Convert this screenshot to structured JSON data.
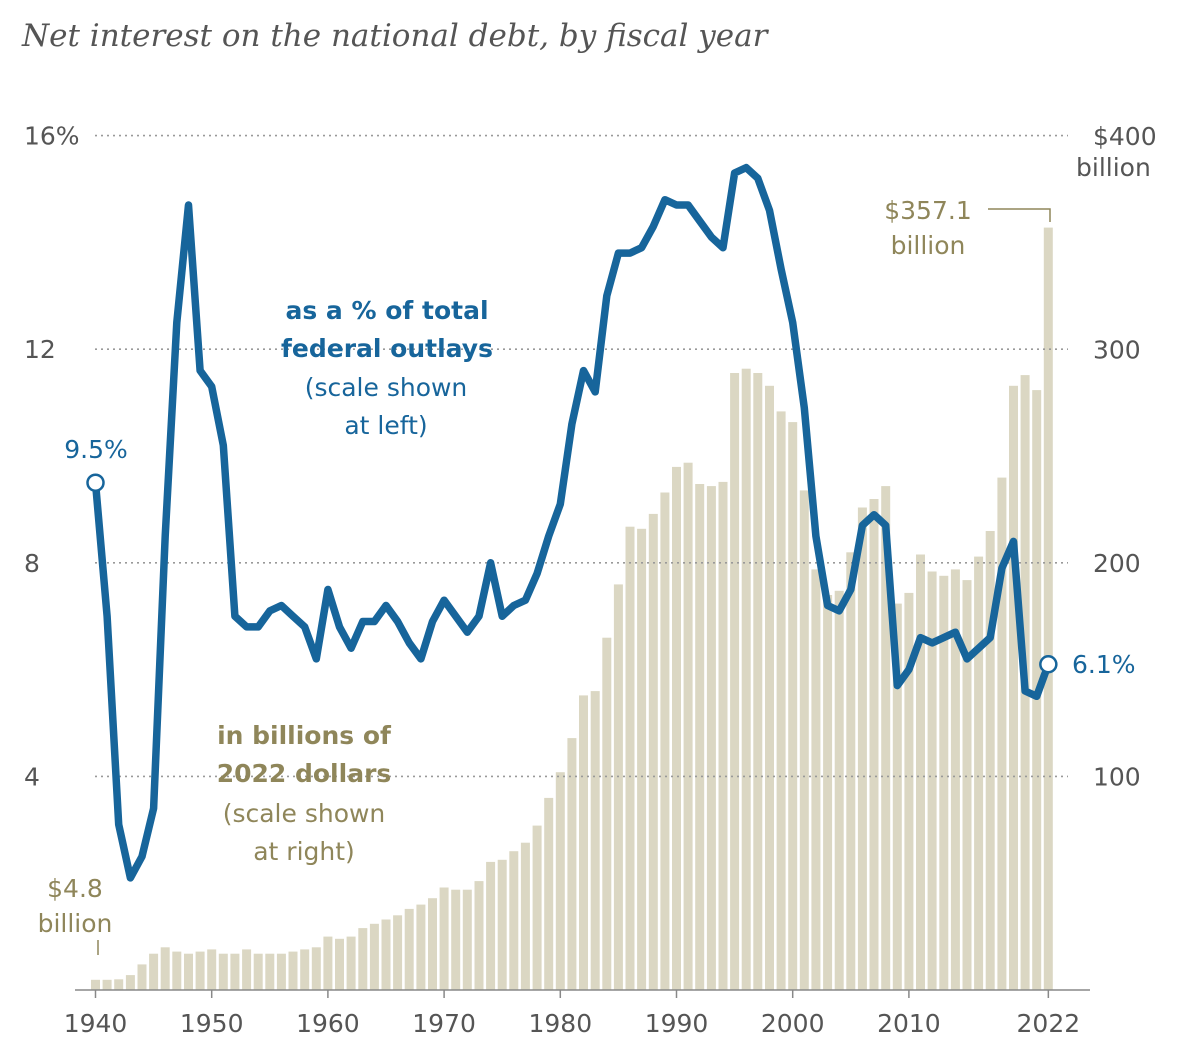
{
  "title": "Net interest on the national debt, by fiscal year",
  "colors": {
    "line": "#17659b",
    "bars": "#dbd7c3",
    "bar_annotation": "#8f865a",
    "grid": "#999999",
    "axis_text": "#555555"
  },
  "chart_data": {
    "type": "bar+line",
    "title": "Net interest on the national debt, by fiscal year",
    "x": [
      1940,
      1941,
      1942,
      1943,
      1944,
      1945,
      1946,
      1947,
      1948,
      1949,
      1950,
      1951,
      1952,
      1953,
      1954,
      1955,
      1956,
      1957,
      1958,
      1959,
      1960,
      1961,
      1962,
      1963,
      1964,
      1965,
      1966,
      1967,
      1968,
      1969,
      1970,
      1971,
      1972,
      1973,
      1974,
      1975,
      1976,
      1977,
      1978,
      1979,
      1980,
      1981,
      1982,
      1983,
      1984,
      1985,
      1986,
      1987,
      1988,
      1989,
      1990,
      1991,
      1992,
      1993,
      1994,
      1995,
      1996,
      1997,
      1998,
      1999,
      2000,
      2001,
      2002,
      2003,
      2004,
      2005,
      2006,
      2007,
      2008,
      2009,
      2010,
      2011,
      2012,
      2013,
      2014,
      2015,
      2016,
      2017,
      2018,
      2019,
      2020,
      2021,
      2022
    ],
    "x_ticks": [
      "1940",
      "1950",
      "1960",
      "1970",
      "1980",
      "1990",
      "2000",
      "2010",
      "2022"
    ],
    "series": [
      {
        "name": "as a % of total federal outlays",
        "axis": "left",
        "kind": "line",
        "values": [
          9.5,
          7.0,
          3.1,
          2.1,
          2.5,
          3.4,
          8.5,
          12.5,
          14.7,
          11.6,
          11.3,
          10.2,
          7.0,
          6.8,
          6.8,
          7.1,
          7.2,
          7.0,
          6.8,
          6.2,
          7.5,
          6.8,
          6.4,
          6.9,
          6.9,
          7.2,
          6.9,
          6.5,
          6.2,
          6.9,
          7.3,
          7.0,
          6.7,
          7.0,
          8.0,
          7.0,
          7.2,
          7.3,
          7.8,
          8.5,
          9.1,
          10.6,
          11.6,
          11.2,
          13.0,
          13.8,
          13.8,
          13.9,
          14.3,
          14.8,
          14.7,
          14.7,
          14.4,
          14.1,
          13.9,
          15.3,
          15.4,
          15.2,
          14.6,
          13.5,
          12.5,
          10.9,
          8.5,
          7.2,
          7.1,
          7.5,
          8.7,
          8.9,
          8.7,
          5.7,
          6.0,
          6.6,
          6.5,
          6.6,
          6.7,
          6.2,
          6.4,
          6.6,
          7.9,
          8.4,
          5.6,
          5.5,
          6.1
        ]
      },
      {
        "name": "in billions of 2022 dollars",
        "axis": "right",
        "kind": "bar",
        "values": [
          4.8,
          4.8,
          5.0,
          7.0,
          12.0,
          17.0,
          20.0,
          18.0,
          17.0,
          18.0,
          19.0,
          17.0,
          17.0,
          19.0,
          17.0,
          17.0,
          17.0,
          18.0,
          19.0,
          20.0,
          25.0,
          24.0,
          25.0,
          29.0,
          31.0,
          33.0,
          35.0,
          38.0,
          40.0,
          43.0,
          48.0,
          47.0,
          47.0,
          51.0,
          60.0,
          61.0,
          65.0,
          69.0,
          77.0,
          90.0,
          102.0,
          118.0,
          138.0,
          140.0,
          165.0,
          190.0,
          217.0,
          216.0,
          223.0,
          233.0,
          245.0,
          247.0,
          237.0,
          236.0,
          238.0,
          289.0,
          291.0,
          289.0,
          283.0,
          271.0,
          266.0,
          234.0,
          197.0,
          185.0,
          187.0,
          205.0,
          226.0,
          230.0,
          236.0,
          181.0,
          186.0,
          204.0,
          196.0,
          194.0,
          197.0,
          192.0,
          203.0,
          215.0,
          240.0,
          283.0,
          288.0,
          281.0,
          357.1
        ]
      }
    ],
    "left_axis": {
      "ticks": [
        "4",
        "8",
        "12",
        "16%"
      ],
      "values": [
        4,
        8,
        12,
        16
      ],
      "ylim": [
        0,
        17
      ]
    },
    "right_axis": {
      "ticks": [
        "100",
        "200",
        "300",
        "$400"
      ],
      "values": [
        100,
        200,
        300,
        400
      ],
      "ylim": [
        0,
        425
      ],
      "unit_label": "billion"
    },
    "grid": "dotted horizontal",
    "annotations": {
      "line_label": [
        "as a % of total",
        "federal outlays"
      ],
      "line_scale_note": [
        "(scale shown",
        "at left)"
      ],
      "bar_label": [
        "in billions of",
        "2022 dollars"
      ],
      "bar_scale_note": [
        "(scale shown",
        "at right)"
      ],
      "line_start_value": "9.5%",
      "line_end_value": "6.1%",
      "bar_start_value": [
        "$4.8",
        "billion"
      ],
      "bar_end_value": [
        "$357.1",
        "billion"
      ]
    }
  }
}
